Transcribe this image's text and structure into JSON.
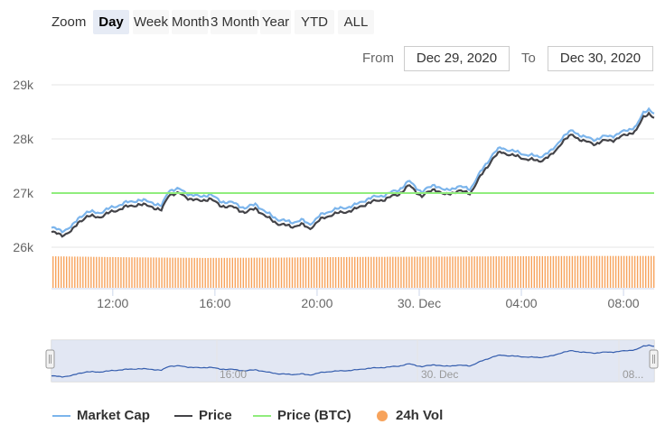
{
  "toolbar": {
    "zoom_label": "Zoom",
    "ranges": [
      "Day",
      "Week",
      "Month",
      "3 Month",
      "Year",
      "YTD",
      "ALL"
    ],
    "active_range": "Day",
    "from_label": "From",
    "from_value": "Dec 29, 2020",
    "to_label": "To",
    "to_value": "Dec 30, 2020"
  },
  "colors": {
    "market_cap": "#7cb5ec",
    "price": "#434348",
    "price_btc": "#90ed7d",
    "volume": "#f7a35c",
    "navigator_mask": "#dde3f1"
  },
  "chart_data": {
    "type": "line",
    "y_ticks": [
      "26k",
      "27k",
      "28k",
      "29k"
    ],
    "ylim": [
      26000,
      29000
    ],
    "x_ticks": [
      "12:00",
      "16:00",
      "20:00",
      "30. Dec",
      "04:00",
      "08:00"
    ],
    "x_range_hours": [
      9.6,
      33.2
    ],
    "price_btc_level": 27000,
    "price_keypoints": [
      [
        9.6,
        26280
      ],
      [
        10.0,
        26220
      ],
      [
        10.4,
        26300
      ],
      [
        10.7,
        26480
      ],
      [
        11.0,
        26570
      ],
      [
        11.5,
        26560
      ],
      [
        12.0,
        26660
      ],
      [
        12.5,
        26740
      ],
      [
        13.0,
        26790
      ],
      [
        13.5,
        26760
      ],
      [
        13.9,
        26670
      ],
      [
        14.2,
        26980
      ],
      [
        14.6,
        26990
      ],
      [
        15.0,
        26900
      ],
      [
        15.4,
        26850
      ],
      [
        15.8,
        26900
      ],
      [
        16.2,
        26770
      ],
      [
        16.7,
        26740
      ],
      [
        17.2,
        26640
      ],
      [
        17.6,
        26720
      ],
      [
        18.0,
        26560
      ],
      [
        18.5,
        26430
      ],
      [
        19.0,
        26380
      ],
      [
        19.4,
        26420
      ],
      [
        19.7,
        26340
      ],
      [
        20.1,
        26500
      ],
      [
        20.6,
        26610
      ],
      [
        21.0,
        26640
      ],
      [
        21.5,
        26700
      ],
      [
        22.0,
        26820
      ],
      [
        22.6,
        26880
      ],
      [
        23.2,
        26980
      ],
      [
        23.6,
        27140
      ],
      [
        24.1,
        26940
      ],
      [
        24.6,
        27080
      ],
      [
        25.0,
        26960
      ],
      [
        25.5,
        27040
      ],
      [
        26.0,
        27000
      ],
      [
        26.5,
        27380
      ],
      [
        26.9,
        27650
      ],
      [
        27.2,
        27760
      ],
      [
        27.7,
        27690
      ],
      [
        28.2,
        27630
      ],
      [
        28.7,
        27590
      ],
      [
        29.2,
        27700
      ],
      [
        29.6,
        27950
      ],
      [
        30.0,
        28080
      ],
      [
        30.4,
        27960
      ],
      [
        30.9,
        27910
      ],
      [
        31.3,
        27970
      ],
      [
        31.7,
        27990
      ],
      [
        32.1,
        28080
      ],
      [
        32.5,
        28150
      ],
      [
        32.8,
        28420
      ],
      [
        33.0,
        28480
      ],
      [
        33.2,
        28380
      ]
    ],
    "market_cap_offset": 80,
    "volume_level_relative": [
      0.97,
      0.94,
      0.92,
      0.93,
      0.95,
      0.96,
      0.97,
      0.98,
      0.98
    ],
    "series": [
      {
        "name": "Market Cap"
      },
      {
        "name": "Price"
      },
      {
        "name": "Price (BTC)"
      },
      {
        "name": "24h Vol"
      }
    ],
    "navigator_labels": [
      "16:00",
      "30. Dec",
      "08..."
    ],
    "legend_placement": "bottom-left",
    "grid": true
  }
}
